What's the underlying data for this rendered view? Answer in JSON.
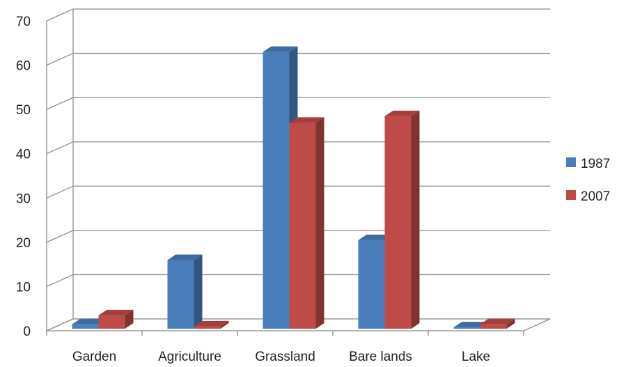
{
  "chart_data": {
    "type": "bar",
    "categories": [
      "Garden",
      "Agriculture",
      "Grassland",
      "Bare lands",
      "Lake"
    ],
    "series": [
      {
        "name": "1987",
        "values": [
          1,
          15.5,
          62.5,
          20,
          0.3
        ]
      },
      {
        "name": "2007",
        "values": [
          3,
          0.5,
          46.5,
          48,
          1
        ]
      }
    ],
    "ylim": [
      0,
      70
    ],
    "yticks": [
      0,
      10,
      20,
      30,
      40,
      50,
      60,
      70
    ],
    "grid": true,
    "legend": "right",
    "style": "3d-clustered",
    "colors": {
      "1987": "#4a7ebb",
      "2007": "#be4b48"
    }
  }
}
